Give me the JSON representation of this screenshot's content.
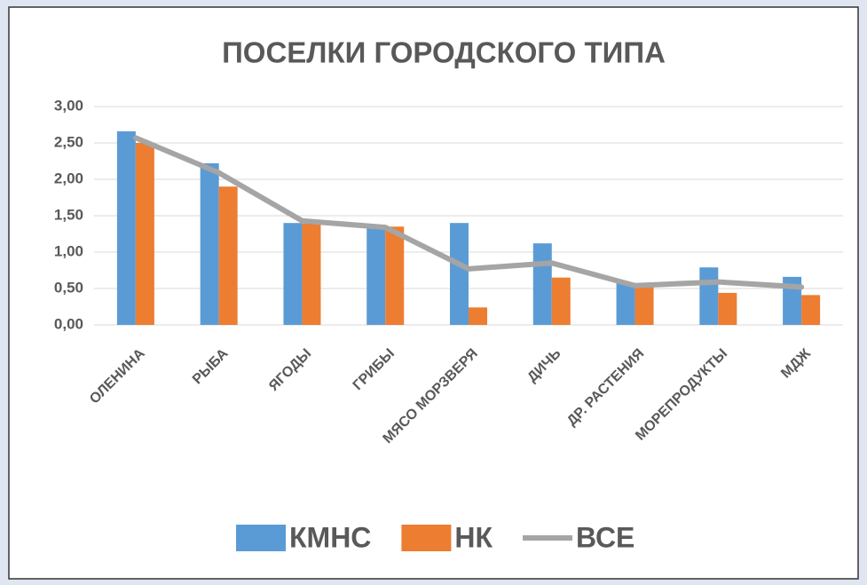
{
  "chart_data": {
    "type": "bar",
    "title": "ПОСЕЛКИ ГОРОДСКОГО ТИПА",
    "categories": [
      "ОЛЕНИНА",
      "РЫБА",
      "ЯГОДЫ",
      "ГРИБЫ",
      "МЯСО МОРЗВЕРЯ",
      "ДИЧЬ",
      "ДР. РАСТЕНИЯ",
      "МОРЕПРОДУКТЫ",
      "МДЖ"
    ],
    "series": [
      {
        "name": "КМНС",
        "type": "bar",
        "color": "#5b9bd5",
        "values": [
          2.66,
          2.22,
          1.4,
          1.37,
          1.4,
          1.12,
          0.58,
          0.79,
          0.66
        ]
      },
      {
        "name": "НК",
        "type": "bar",
        "color": "#ed7d31",
        "values": [
          2.5,
          1.9,
          1.39,
          1.35,
          0.24,
          0.65,
          0.54,
          0.44,
          0.41
        ]
      },
      {
        "name": "ВСЕ",
        "type": "line",
        "color": "#a5a5a5",
        "values": [
          2.57,
          2.09,
          1.43,
          1.34,
          0.77,
          0.85,
          0.54,
          0.59,
          0.52
        ]
      }
    ],
    "ylim": [
      0,
      3
    ],
    "yticks": [
      {
        "value": 0,
        "label": "0,00"
      },
      {
        "value": 0.5,
        "label": "0,50"
      },
      {
        "value": 1,
        "label": "1,00"
      },
      {
        "value": 1.5,
        "label": "1,50"
      },
      {
        "value": 2,
        "label": "2,00"
      },
      {
        "value": 2.5,
        "label": "2,50"
      },
      {
        "value": 3,
        "label": "3,00"
      }
    ],
    "grid": true,
    "legend": "bottom"
  }
}
